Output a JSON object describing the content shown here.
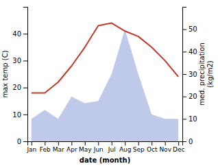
{
  "chart_data": {
    "type": "line",
    "xlabel": "date (month)",
    "ylabel": "max temp (C)",
    "y2label": "med. precipitation\n(kg/m2)",
    "categories": [
      "Jan",
      "Feb",
      "Mar",
      "Apr",
      "May",
      "Jun",
      "Jul",
      "Aug",
      "Sep",
      "Oct",
      "Nov",
      "Dec"
    ],
    "ylim": [
      0,
      50
    ],
    "yticks": [
      0,
      10,
      20,
      30,
      40
    ],
    "y2lim": [
      0,
      60
    ],
    "y2ticks": [
      0,
      10,
      20,
      30,
      40,
      50
    ],
    "series": [
      {
        "type": "area",
        "axis": "y2",
        "color": "#b8c4e8",
        "values": [
          10,
          14,
          10,
          20,
          17,
          18,
          30,
          50,
          30,
          12,
          10,
          10
        ]
      },
      {
        "type": "line",
        "color": "#c0392b",
        "values": [
          18,
          18,
          22,
          28,
          35,
          43,
          44,
          41,
          39,
          35,
          30,
          24
        ]
      }
    ]
  }
}
